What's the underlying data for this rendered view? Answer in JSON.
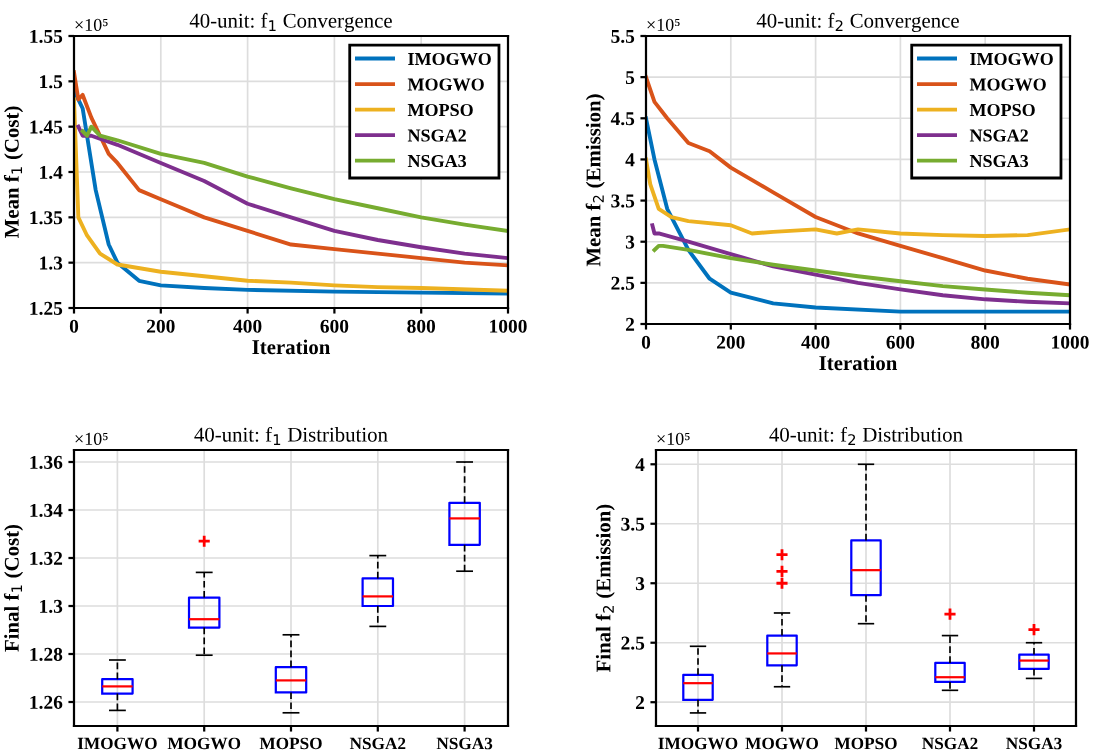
{
  "chart_data": [
    {
      "type": "line",
      "title": "40-unit: f$_{1}$ Convergence",
      "xlabel": "Iteration",
      "ylabel": "Mean f$_{1}$ (Cost)",
      "annotations": [
        "×10⁵"
      ],
      "xlim": [
        0,
        1000
      ],
      "xticks": [
        0,
        200,
        400,
        600,
        800,
        1000
      ],
      "ylim": [
        1.25,
        1.55
      ],
      "yticks": [
        1.25,
        1.3,
        1.35,
        1.4,
        1.45,
        1.5,
        1.55
      ],
      "grid": true,
      "legend": "top right",
      "series": [
        {
          "name": "IMOGWO",
          "color": "#0072bd",
          "x": [
            0,
            20,
            50,
            80,
            100,
            150,
            200,
            300,
            400,
            600,
            800,
            1000
          ],
          "values": [
            1.49,
            1.47,
            1.38,
            1.32,
            1.3,
            1.28,
            1.275,
            1.272,
            1.27,
            1.268,
            1.267,
            1.266
          ]
        },
        {
          "name": "MOGWO",
          "color": "#d95319",
          "x": [
            0,
            10,
            20,
            40,
            60,
            80,
            100,
            150,
            200,
            250,
            300,
            400,
            500,
            600,
            700,
            800,
            900,
            1000
          ],
          "values": [
            1.51,
            1.48,
            1.485,
            1.46,
            1.44,
            1.42,
            1.41,
            1.38,
            1.37,
            1.36,
            1.35,
            1.335,
            1.32,
            1.315,
            1.31,
            1.305,
            1.3,
            1.297
          ]
        },
        {
          "name": "MOPSO",
          "color": "#edb120",
          "x": [
            0,
            10,
            30,
            60,
            100,
            200,
            300,
            400,
            500,
            600,
            700,
            800,
            1000
          ],
          "values": [
            1.48,
            1.35,
            1.33,
            1.31,
            1.298,
            1.29,
            1.285,
            1.28,
            1.278,
            1.275,
            1.273,
            1.272,
            1.269
          ]
        },
        {
          "name": "NSGA2",
          "color": "#7e2f8e",
          "x": [
            10,
            20,
            40,
            100,
            200,
            300,
            400,
            500,
            600,
            700,
            800,
            900,
            1000
          ],
          "values": [
            1.45,
            1.44,
            1.44,
            1.43,
            1.41,
            1.39,
            1.365,
            1.35,
            1.335,
            1.325,
            1.317,
            1.31,
            1.305
          ]
        },
        {
          "name": "NSGA3",
          "color": "#77ac30",
          "x": [
            20,
            30,
            40,
            60,
            100,
            200,
            300,
            400,
            500,
            600,
            700,
            800,
            900,
            1000
          ],
          "values": [
            1.445,
            1.44,
            1.45,
            1.44,
            1.435,
            1.42,
            1.41,
            1.395,
            1.382,
            1.37,
            1.36,
            1.35,
            1.342,
            1.335
          ]
        }
      ]
    },
    {
      "type": "line",
      "title": "40-unit: f$_{2}$ Convergence",
      "xlabel": "Iteration",
      "ylabel": "Mean f$_{2}$ (Emission)",
      "annotations": [
        "×10⁵"
      ],
      "xlim": [
        0,
        1000
      ],
      "xticks": [
        0,
        200,
        400,
        600,
        800,
        1000
      ],
      "ylim": [
        2,
        5.5
      ],
      "yticks": [
        2,
        2.5,
        3,
        3.5,
        4,
        4.5,
        5,
        5.5
      ],
      "grid": true,
      "legend": "top right",
      "series": [
        {
          "name": "IMOGWO",
          "color": "#0072bd",
          "x": [
            0,
            20,
            50,
            100,
            150,
            200,
            300,
            400,
            600,
            800,
            1000
          ],
          "values": [
            4.5,
            4.0,
            3.4,
            2.9,
            2.55,
            2.38,
            2.25,
            2.2,
            2.15,
            2.15,
            2.15
          ]
        },
        {
          "name": "MOGWO",
          "color": "#d95319",
          "x": [
            0,
            20,
            50,
            100,
            150,
            200,
            300,
            400,
            500,
            600,
            700,
            800,
            900,
            1000
          ],
          "values": [
            5.0,
            4.7,
            4.5,
            4.2,
            4.1,
            3.9,
            3.6,
            3.3,
            3.1,
            2.95,
            2.8,
            2.65,
            2.55,
            2.48
          ]
        },
        {
          "name": "MOPSO",
          "color": "#edb120",
          "x": [
            0,
            10,
            30,
            60,
            100,
            200,
            250,
            300,
            400,
            450,
            500,
            600,
            700,
            800,
            900,
            1000
          ],
          "values": [
            4.0,
            3.7,
            3.4,
            3.3,
            3.25,
            3.2,
            3.1,
            3.12,
            3.15,
            3.1,
            3.15,
            3.1,
            3.08,
            3.07,
            3.08,
            3.15
          ]
        },
        {
          "name": "NSGA2",
          "color": "#7e2f8e",
          "x": [
            15,
            20,
            30,
            100,
            200,
            300,
            400,
            500,
            600,
            700,
            800,
            900,
            1000
          ],
          "values": [
            3.2,
            3.1,
            3.1,
            3.0,
            2.85,
            2.7,
            2.6,
            2.5,
            2.42,
            2.35,
            2.3,
            2.27,
            2.25
          ]
        },
        {
          "name": "NSGA3",
          "color": "#77ac30",
          "x": [
            20,
            30,
            40,
            100,
            200,
            300,
            400,
            500,
            600,
            700,
            800,
            900,
            1000
          ],
          "values": [
            2.9,
            2.95,
            2.95,
            2.9,
            2.8,
            2.72,
            2.65,
            2.58,
            2.52,
            2.46,
            2.42,
            2.38,
            2.35
          ]
        }
      ]
    },
    {
      "type": "box",
      "title": "40-unit: f$_{1}$ Distribution",
      "ylabel": "Final f$_{1}$ (Cost)",
      "annotations": [
        "×10⁵"
      ],
      "categories": [
        "IMOGWO",
        "MOGWO",
        "MOPSO",
        "NSGA2",
        "NSGA3"
      ],
      "ylim": [
        1.25,
        1.365
      ],
      "yticks": [
        1.26,
        1.28,
        1.3,
        1.32,
        1.34,
        1.36
      ],
      "grid": true,
      "series": [
        {
          "color": "#0000ff",
          "boxes": [
            {
              "low": 1.2565,
              "q1": 1.2635,
              "median": 1.2665,
              "q3": 1.2695,
              "high": 1.2775
            },
            {
              "low": 1.2795,
              "q1": 1.291,
              "median": 1.2945,
              "q3": 1.3035,
              "high": 1.314,
              "outliers": [
                1.327
              ]
            },
            {
              "low": 1.2555,
              "q1": 1.264,
              "median": 1.269,
              "q3": 1.2745,
              "high": 1.288
            },
            {
              "low": 1.2915,
              "q1": 1.3,
              "median": 1.304,
              "q3": 1.3115,
              "high": 1.321
            },
            {
              "low": 1.3145,
              "q1": 1.3255,
              "median": 1.3365,
              "q3": 1.343,
              "high": 1.36
            }
          ]
        }
      ]
    },
    {
      "type": "box",
      "title": "40-unit: f$_{2}$ Distribution",
      "ylabel": "Final f$_{2}$ (Emission)",
      "annotations": [
        "×10⁵"
      ],
      "categories": [
        "IMOGWO",
        "MOGWO",
        "MOPSO",
        "NSGA2",
        "NSGA3"
      ],
      "ylim": [
        1.8,
        4.12
      ],
      "yticks": [
        2,
        2.5,
        3,
        3.5,
        4
      ],
      "grid": true,
      "series": [
        {
          "color": "#0000ff",
          "boxes": [
            {
              "low": 1.91,
              "q1": 2.02,
              "median": 2.16,
              "q3": 2.23,
              "high": 2.47
            },
            {
              "low": 2.13,
              "q1": 2.31,
              "median": 2.41,
              "q3": 2.56,
              "high": 2.75,
              "outliers": [
                3.0,
                3.1,
                3.24
              ]
            },
            {
              "low": 2.66,
              "q1": 2.9,
              "median": 3.11,
              "q3": 3.36,
              "high": 4.0
            },
            {
              "low": 2.1,
              "q1": 2.17,
              "median": 2.21,
              "q3": 2.33,
              "high": 2.56,
              "outliers": [
                2.74
              ]
            },
            {
              "low": 2.2,
              "q1": 2.28,
              "median": 2.35,
              "q3": 2.4,
              "high": 2.5,
              "outliers": [
                2.61
              ]
            }
          ]
        }
      ]
    }
  ]
}
